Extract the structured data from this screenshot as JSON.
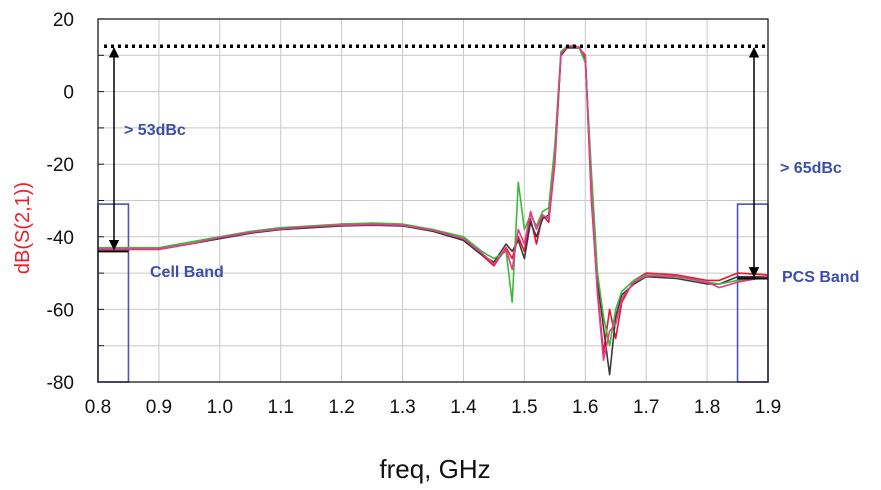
{
  "chart_data": {
    "type": "line",
    "title": "",
    "xlabel": "freq, GHz",
    "ylabel": "dB(S(2,1))",
    "xlim": [
      0.8,
      1.9
    ],
    "ylim": [
      -80,
      20
    ],
    "xticks": [
      "0.8",
      "0.9",
      "1.0",
      "1.1",
      "1.2",
      "1.3",
      "1.4",
      "1.5",
      "1.6",
      "1.7",
      "1.8",
      "1.9"
    ],
    "xtick_values": [
      0.8,
      0.9,
      1.0,
      1.1,
      1.2,
      1.3,
      1.4,
      1.5,
      1.6,
      1.7,
      1.8,
      1.9
    ],
    "yticks": [
      "20",
      "0",
      "-20",
      "-40",
      "-60",
      "-80"
    ],
    "ytick_values": [
      20,
      0,
      -20,
      -40,
      -60,
      -80
    ],
    "grid": true,
    "colors": {
      "axis_label": "#e8202a",
      "annotation": "#3c4fa8",
      "box": "#4a55b8"
    },
    "series": [
      {
        "color": "#e8172f",
        "x": [
          0.8,
          0.85,
          0.9,
          0.95,
          1.0,
          1.05,
          1.1,
          1.15,
          1.2,
          1.25,
          1.3,
          1.35,
          1.4,
          1.43,
          1.45,
          1.47,
          1.48,
          1.49,
          1.5,
          1.51,
          1.52,
          1.53,
          1.54,
          1.55,
          1.56,
          1.57,
          1.58,
          1.59,
          1.6,
          1.61,
          1.62,
          1.63,
          1.64,
          1.65,
          1.66,
          1.68,
          1.7,
          1.75,
          1.8,
          1.82,
          1.85,
          1.9
        ],
        "y": [
          -43.5,
          -43.5,
          -43.5,
          -42,
          -40.5,
          -39,
          -38,
          -37.5,
          -36.5,
          -36.5,
          -37,
          -38,
          -41,
          -45,
          -48,
          -43,
          -46,
          -40,
          -44,
          -35,
          -42,
          -34,
          -36,
          -20,
          10,
          12,
          12.5,
          12,
          10,
          -30,
          -55,
          -72,
          -60,
          -68,
          -58,
          -52,
          -50,
          -50.5,
          -52,
          -52,
          -50,
          -50.5
        ]
      },
      {
        "color": "#3a3a3a",
        "x": [
          0.8,
          0.85,
          0.9,
          0.95,
          1.0,
          1.05,
          1.1,
          1.15,
          1.2,
          1.25,
          1.3,
          1.35,
          1.4,
          1.43,
          1.45,
          1.47,
          1.48,
          1.49,
          1.5,
          1.51,
          1.52,
          1.53,
          1.54,
          1.55,
          1.56,
          1.57,
          1.58,
          1.59,
          1.6,
          1.61,
          1.62,
          1.63,
          1.64,
          1.65,
          1.66,
          1.68,
          1.7,
          1.75,
          1.8,
          1.82,
          1.85,
          1.9
        ],
        "y": [
          -43.3,
          -43.3,
          -43.3,
          -42,
          -40.5,
          -39,
          -38,
          -37.5,
          -37,
          -36.8,
          -37,
          -38.5,
          -41,
          -45,
          -47,
          -42,
          -44,
          -41,
          -46,
          -36,
          -40,
          -35,
          -34,
          -18,
          10,
          12,
          12,
          12,
          9,
          -25,
          -52,
          -65,
          -78,
          -62,
          -56,
          -53,
          -51,
          -51.5,
          -53,
          -53,
          -51,
          -51
        ]
      },
      {
        "color": "#3fb83a",
        "x": [
          0.8,
          0.85,
          0.9,
          0.95,
          1.0,
          1.05,
          1.1,
          1.15,
          1.2,
          1.25,
          1.3,
          1.35,
          1.4,
          1.43,
          1.45,
          1.47,
          1.48,
          1.49,
          1.5,
          1.51,
          1.52,
          1.53,
          1.54,
          1.55,
          1.56,
          1.57,
          1.58,
          1.59,
          1.6,
          1.61,
          1.62,
          1.63,
          1.64,
          1.65,
          1.66,
          1.68,
          1.7,
          1.75,
          1.8,
          1.82,
          1.85,
          1.9
        ],
        "y": [
          -43,
          -43,
          -43,
          -41.5,
          -40,
          -38.5,
          -37.5,
          -37,
          -36.5,
          -36.2,
          -36.5,
          -38,
          -40,
          -44,
          -46,
          -44,
          -58,
          -25,
          -38,
          -34,
          -37,
          -33,
          -32,
          -15,
          11,
          12.5,
          12.5,
          12,
          8,
          -22,
          -50,
          -62,
          -70,
          -60,
          -55,
          -52,
          -50.5,
          -51,
          -52.5,
          -53,
          -52,
          -51
        ]
      },
      {
        "color": "#e23d8f",
        "x": [
          0.8,
          0.85,
          0.9,
          0.95,
          1.0,
          1.05,
          1.1,
          1.15,
          1.2,
          1.25,
          1.3,
          1.35,
          1.4,
          1.43,
          1.45,
          1.47,
          1.48,
          1.49,
          1.5,
          1.51,
          1.52,
          1.53,
          1.54,
          1.55,
          1.56,
          1.57,
          1.58,
          1.59,
          1.6,
          1.61,
          1.62,
          1.63,
          1.64,
          1.65,
          1.66,
          1.68,
          1.7,
          1.75,
          1.8,
          1.82,
          1.85,
          1.9
        ],
        "y": [
          -43.4,
          -43.4,
          -43.4,
          -42,
          -40.2,
          -38.8,
          -37.8,
          -37.2,
          -36.8,
          -36.6,
          -36.8,
          -38.2,
          -40.5,
          -44.5,
          -47.5,
          -43.5,
          -49,
          -38,
          -42,
          -33,
          -38,
          -34,
          -35,
          -19,
          10.5,
          12.2,
          12.8,
          12.2,
          9.5,
          -28,
          -56,
          -74,
          -66,
          -64,
          -57,
          -52.5,
          -50.8,
          -50.8,
          -52.5,
          -54,
          -52.5,
          -51
        ]
      }
    ],
    "reference_level": 12.5,
    "annotations": {
      "cell_gap": "> 53dBc",
      "pcs_gap": "> 65dBc",
      "cell_band": "Cell Band",
      "pcs_band": "PCS Band"
    },
    "bands": [
      {
        "name": "cell",
        "x_from": 0.8,
        "x_to": 0.85,
        "y_from": -80,
        "y_to": -31
      },
      {
        "name": "pcs",
        "x_from": 1.85,
        "x_to": 1.9,
        "y_from": -80,
        "y_to": -31
      }
    ],
    "cell_marker_level": -44,
    "pcs_marker_level": -51.5
  }
}
